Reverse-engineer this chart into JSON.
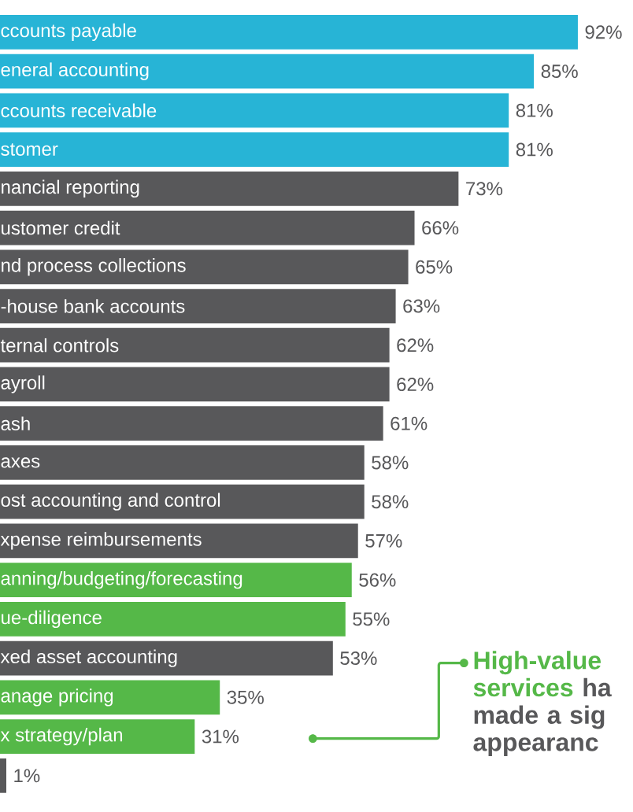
{
  "chart_data": {
    "type": "bar",
    "orientation": "horizontal",
    "categories": [
      "ccounts payable",
      "eneral accounting",
      "ccounts receivable",
      "stomer",
      "nancial reporting",
      "ustomer credit",
      "nd process collections",
      "-house bank accounts",
      "ternal controls",
      "ayroll",
      "ash",
      "axes",
      "ost accounting and control",
      "xpense reimbursements",
      "anning/budgeting/forecasting",
      "ue-diligence",
      "xed asset accounting",
      "anage pricing",
      "x strategy/plan",
      null
    ],
    "values": [
      92,
      85,
      81,
      81,
      73,
      66,
      65,
      63,
      62,
      62,
      61,
      58,
      58,
      57,
      56,
      55,
      53,
      35,
      31,
      1
    ],
    "value_labels": [
      "92%",
      "85%",
      "81%",
      "81%",
      "73%",
      "66%",
      "65%",
      "63%",
      "62%",
      "62%",
      "61%",
      "58%",
      "58%",
      "57%",
      "56%",
      "55%",
      "53%",
      "35%",
      "31%",
      "1%"
    ],
    "colors": [
      "#27b4d6",
      "#27b4d6",
      "#27b4d6",
      "#27b4d6",
      "#58585a",
      "#58585a",
      "#58585a",
      "#58585a",
      "#58585a",
      "#58585a",
      "#58585a",
      "#58585a",
      "#58585a",
      "#58585a",
      "#55b848",
      "#55b848",
      "#58585a",
      "#55b848",
      "#55b848",
      "#58585a"
    ],
    "annotations": [
      "High-value services",
      "ha made a sig appearanc"
    ]
  }
}
